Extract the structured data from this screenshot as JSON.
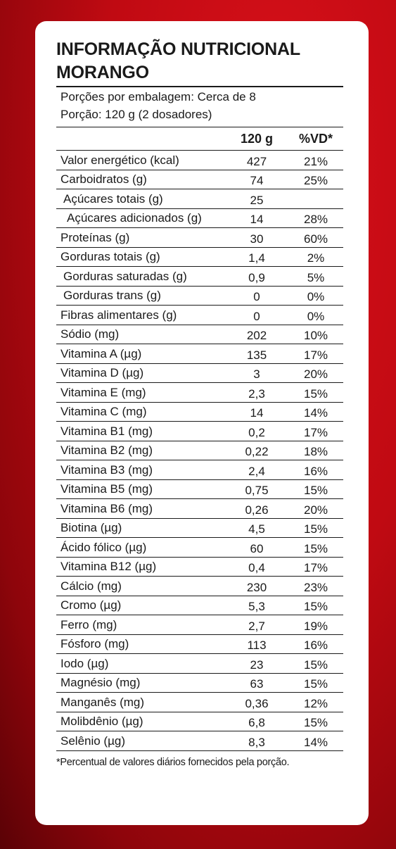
{
  "title_line1": "INFORMAÇÃO NUTRICIONAL",
  "title_line2": "MORANGO",
  "servings_per_package": "Porções por embalagem: Cerca de 8",
  "serving_size": "Porção: 120 g (2 dosadores)",
  "columns": {
    "name": "",
    "amount": "120 g",
    "dv": "%VD*"
  },
  "rows": [
    {
      "name": "Valor energético (kcal)",
      "amount": "427",
      "dv": "21%",
      "indent": 0
    },
    {
      "name": "Carboidratos (g)",
      "amount": "74",
      "dv": "25%",
      "indent": 0
    },
    {
      "name": "Açúcares totais (g)",
      "amount": "25",
      "dv": "",
      "indent": 1
    },
    {
      "name": "Açúcares adicionados (g)",
      "amount": "14",
      "dv": "28%",
      "indent": 2
    },
    {
      "name": "Proteínas (g)",
      "amount": "30",
      "dv": "60%",
      "indent": 0
    },
    {
      "name": "Gorduras totais (g)",
      "amount": "1,4",
      "dv": "2%",
      "indent": 0
    },
    {
      "name": "Gorduras saturadas (g)",
      "amount": "0,9",
      "dv": "5%",
      "indent": 1
    },
    {
      "name": "Gorduras trans (g)",
      "amount": "0",
      "dv": "0%",
      "indent": 1
    },
    {
      "name": "Fibras alimentares (g)",
      "amount": "0",
      "dv": "0%",
      "indent": 0
    },
    {
      "name": "Sódio (mg)",
      "amount": "202",
      "dv": "10%",
      "indent": 0
    },
    {
      "name": "Vitamina A (µg)",
      "amount": "135",
      "dv": "17%",
      "indent": 0
    },
    {
      "name": "Vitamina D (µg)",
      "amount": "3",
      "dv": "20%",
      "indent": 0
    },
    {
      "name": "Vitamina E (mg)",
      "amount": "2,3",
      "dv": "15%",
      "indent": 0
    },
    {
      "name": "Vitamina C (mg)",
      "amount": "14",
      "dv": "14%",
      "indent": 0
    },
    {
      "name": "Vitamina B1 (mg)",
      "amount": "0,2",
      "dv": "17%",
      "indent": 0
    },
    {
      "name": "Vitamina B2 (mg)",
      "amount": "0,22",
      "dv": "18%",
      "indent": 0
    },
    {
      "name": "Vitamina B3 (mg)",
      "amount": "2,4",
      "dv": "16%",
      "indent": 0
    },
    {
      "name": "Vitamina B5 (mg)",
      "amount": "0,75",
      "dv": "15%",
      "indent": 0
    },
    {
      "name": "Vitamina B6 (mg)",
      "amount": "0,26",
      "dv": "20%",
      "indent": 0
    },
    {
      "name": "Biotina (µg)",
      "amount": "4,5",
      "dv": "15%",
      "indent": 0
    },
    {
      "name": "Ácido fólico (µg)",
      "amount": "60",
      "dv": "15%",
      "indent": 0
    },
    {
      "name": "Vitamina B12 (µg)",
      "amount": "0,4",
      "dv": "17%",
      "indent": 0
    },
    {
      "name": "Cálcio (mg)",
      "amount": "230",
      "dv": "23%",
      "indent": 0
    },
    {
      "name": "Cromo (µg)",
      "amount": "5,3",
      "dv": "15%",
      "indent": 0
    },
    {
      "name": "Ferro (mg)",
      "amount": "2,7",
      "dv": "19%",
      "indent": 0
    },
    {
      "name": "Fósforo (mg)",
      "amount": "113",
      "dv": "16%",
      "indent": 0
    },
    {
      "name": "Iodo (µg)",
      "amount": "23",
      "dv": "15%",
      "indent": 0
    },
    {
      "name": "Magnésio (mg)",
      "amount": "63",
      "dv": "15%",
      "indent": 0
    },
    {
      "name": "Manganês (mg)",
      "amount": "0,36",
      "dv": "12%",
      "indent": 0
    },
    {
      "name": "Molibdênio (µg)",
      "amount": "6,8",
      "dv": "15%",
      "indent": 0
    },
    {
      "name": "Selênio (µg)",
      "amount": "8,3",
      "dv": "14%",
      "indent": 0
    }
  ],
  "footnote": "*Percentual de valores diários fornecidos pela porção.",
  "colors": {
    "background": "#c00a12",
    "card": "#ffffff",
    "text": "#1a1a1a"
  }
}
